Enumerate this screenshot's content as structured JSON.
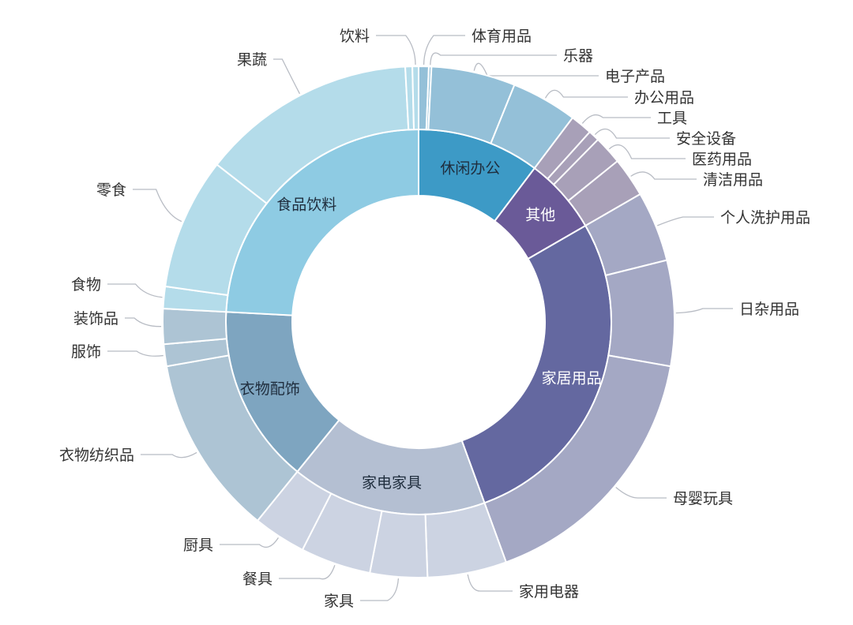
{
  "chart_data": {
    "type": "sunburst",
    "title": "",
    "categories": [
      {
        "name": "休闲办公",
        "color": "#3d9ac6",
        "child_color": "#94c0d8",
        "label_color": "#1f2d3d",
        "children": [
          {
            "name": "体育用品",
            "value": 2.3
          },
          {
            "name": "乐器",
            "value": 0.6
          },
          {
            "name": "电子产品",
            "value": 19.1
          },
          {
            "name": "办公用品",
            "value": 15
          }
        ]
      },
      {
        "name": "其他",
        "color": "#6a5a98",
        "child_color": "#a8a0b8",
        "label_color": "#ffffff",
        "children": [
          {
            "name": "工具",
            "value": 5
          },
          {
            "name": "安全设备",
            "value": 2.5
          },
          {
            "name": "医药用品",
            "value": 6.5
          },
          {
            "name": "清洁用品",
            "value": 9
          }
        ]
      },
      {
        "name": "家居用品",
        "color": "#6468a0",
        "child_color": "#a4a8c4",
        "label_color": "#ffffff",
        "children": [
          {
            "name": "个人洗护用品",
            "value": 16
          },
          {
            "name": "日杂用品",
            "value": 24
          },
          {
            "name": "母婴玩具",
            "value": 60
          }
        ]
      },
      {
        "name": "家电家具",
        "color": "#b4bfd2",
        "child_color": "#ccd3e2",
        "label_color": "#1f2d3d",
        "children": [
          {
            "name": "家用电器",
            "value": 18
          },
          {
            "name": "家具",
            "value": 13
          },
          {
            "name": "餐具",
            "value": 16
          },
          {
            "name": "厨具",
            "value": 12
          }
        ]
      },
      {
        "name": "衣物配饰",
        "color": "#7ea5c0",
        "child_color": "#adc4d4",
        "label_color": "#1f2d3d",
        "children": [
          {
            "name": "衣物纺织品",
            "value": 41
          },
          {
            "name": "服饰",
            "value": 5
          },
          {
            "name": "装饰品",
            "value": 8
          }
        ]
      },
      {
        "name": "食品饮料",
        "color": "#8ecbe3",
        "child_color": "#b4dcea",
        "label_color": "#1f2d3d",
        "children": [
          {
            "name": "食物",
            "value": 5
          },
          {
            "name": "零食",
            "value": 30
          },
          {
            "name": "果蔬",
            "value": 49
          },
          {
            "name": "",
            "value": 1.6
          },
          {
            "name": "饮料",
            "value": 1.4
          }
        ]
      }
    ]
  }
}
